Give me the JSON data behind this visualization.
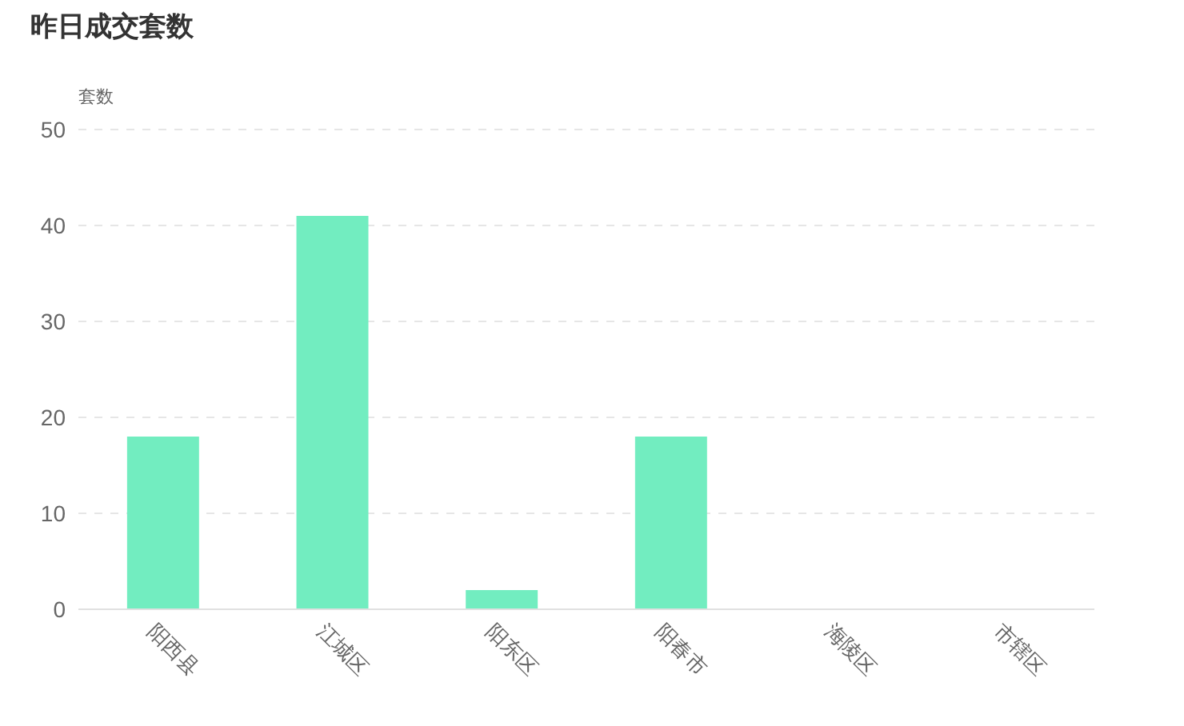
{
  "chart_data": {
    "type": "bar",
    "title": "昨日成交套数",
    "ylabel": "套数",
    "categories": [
      "阳西县",
      "江城区",
      "阳东区",
      "阳春市",
      "海陵区",
      "市辖区"
    ],
    "values": [
      18,
      41,
      2,
      18,
      0,
      0
    ],
    "color": "#72edc0",
    "ylim": [
      0,
      50
    ],
    "yticks": [
      0,
      10,
      20,
      30,
      40,
      50
    ],
    "grid": "y"
  }
}
